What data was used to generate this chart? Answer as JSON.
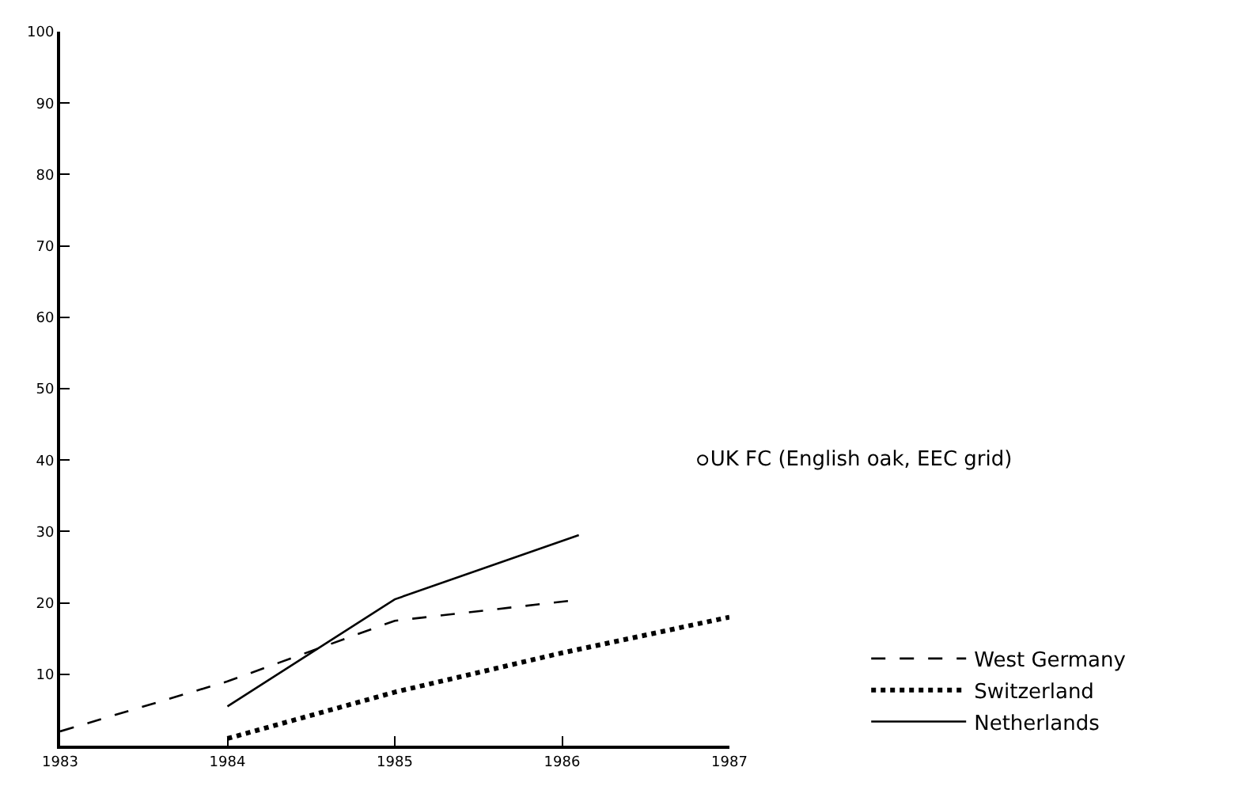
{
  "chart_data": {
    "type": "line",
    "series": [
      {
        "name": "West Germany",
        "color": "#000000",
        "line_style": "dashed",
        "x": [
          1983,
          1984,
          1985,
          1986.05
        ],
        "values": [
          2,
          9,
          17.5,
          20.3
        ]
      },
      {
        "name": "Switzerland",
        "color": "#000000",
        "line_style": "dotted",
        "x": [
          1984,
          1985,
          1986,
          1987
        ],
        "values": [
          1,
          7.5,
          13,
          18
        ]
      },
      {
        "name": "Netherlands",
        "color": "#000000",
        "line_style": "solid",
        "x": [
          1984,
          1985,
          1986.1
        ],
        "values": [
          5.5,
          20.5,
          29.5
        ]
      },
      {
        "name": "UK FC (English oak, EEC grid)",
        "type": "scatter",
        "marker": "circle",
        "color": "#000000",
        "x": [
          1986.84
        ],
        "values": [
          40
        ]
      }
    ],
    "xlim": [
      1983,
      1987
    ],
    "xticks": [
      1983,
      1984,
      1985,
      1986,
      1987
    ],
    "ylim": [
      0,
      100
    ],
    "yticks": [
      10,
      20,
      30,
      40,
      50,
      60,
      70,
      80,
      90,
      100
    ],
    "legend": "bottom right"
  }
}
